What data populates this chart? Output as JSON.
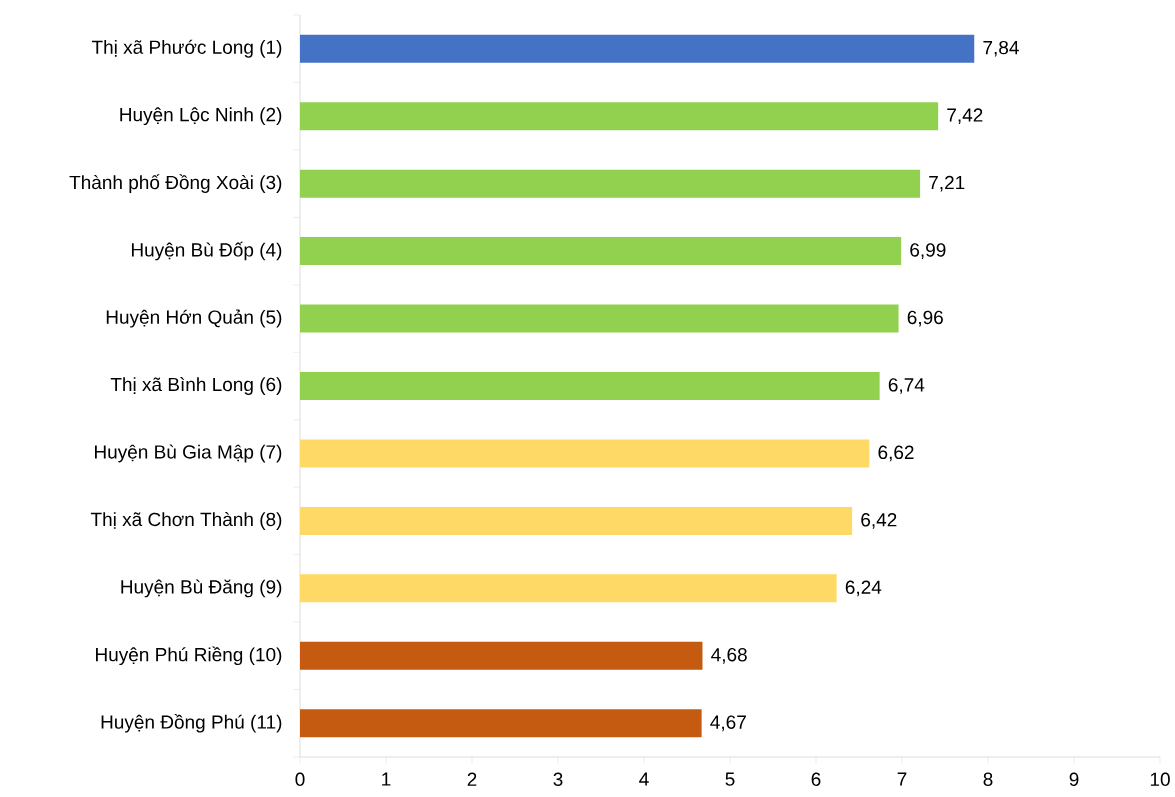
{
  "chart_data": {
    "type": "bar",
    "orientation": "horizontal",
    "categories": [
      "Thị xã Phước Long (1)",
      "Huyện Lộc Ninh (2)",
      "Thành phố Đồng Xoài (3)",
      "Huyện Bù Đốp (4)",
      "Huyện Hớn Quản (5)",
      "Thị xã Bình Long (6)",
      "Huyện Bù Gia Mập (7)",
      "Thị xã Chơn Thành (8)",
      "Huyện Bù Đăng (9)",
      "Huyện Phú Riềng (10)",
      "Huyện Đồng Phú (11)"
    ],
    "values": [
      7.84,
      7.42,
      7.21,
      6.99,
      6.96,
      6.74,
      6.62,
      6.42,
      6.24,
      4.68,
      4.67
    ],
    "colors": [
      "#4472c4",
      "#92d050",
      "#92d050",
      "#92d050",
      "#92d050",
      "#92d050",
      "#ffd966",
      "#ffd966",
      "#ffd966",
      "#c55a11",
      "#c55a11"
    ],
    "xlim": [
      0,
      10
    ],
    "xticks": [
      0,
      1,
      2,
      3,
      4,
      5,
      6,
      7,
      8,
      9,
      10
    ],
    "value_labels": [
      "7,84",
      "7,42",
      "7,21",
      "6,99",
      "6,96",
      "6,74",
      "6,62",
      "6,42",
      "6,24",
      "4,68",
      "4,67"
    ]
  }
}
